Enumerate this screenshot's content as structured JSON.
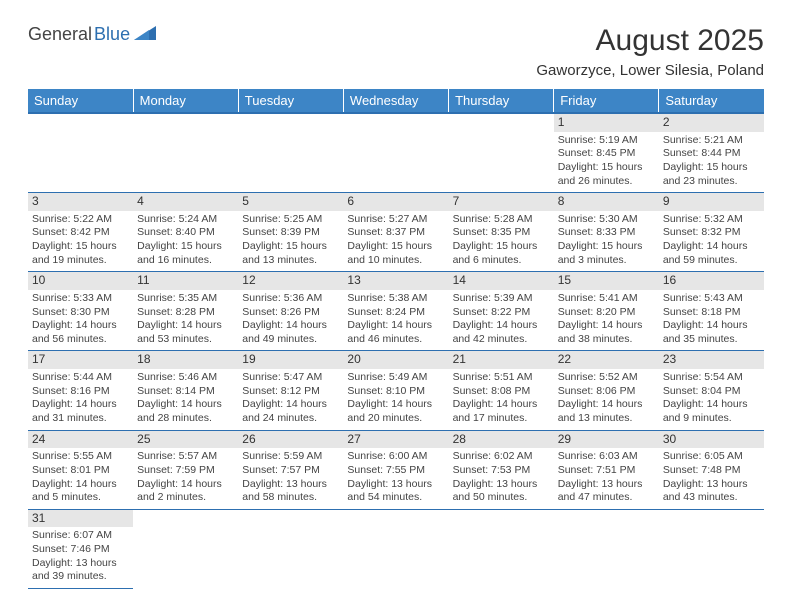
{
  "logo": {
    "text1": "General",
    "text2": "Blue"
  },
  "title": "August 2025",
  "subtitle": "Gaworzyce, Lower Silesia, Poland",
  "colors": {
    "header_bg": "#3d85c6",
    "header_fg": "#ffffff",
    "accent": "#2d6fb0",
    "daynum_bg": "#e6e6e6",
    "text": "#333333"
  },
  "weekdays": [
    "Sunday",
    "Monday",
    "Tuesday",
    "Wednesday",
    "Thursday",
    "Friday",
    "Saturday"
  ],
  "weeks": [
    [
      null,
      null,
      null,
      null,
      null,
      {
        "n": "1",
        "sr": "5:19 AM",
        "ss": "8:45 PM",
        "dl": "15 hours and 26 minutes."
      },
      {
        "n": "2",
        "sr": "5:21 AM",
        "ss": "8:44 PM",
        "dl": "15 hours and 23 minutes."
      }
    ],
    [
      {
        "n": "3",
        "sr": "5:22 AM",
        "ss": "8:42 PM",
        "dl": "15 hours and 19 minutes."
      },
      {
        "n": "4",
        "sr": "5:24 AM",
        "ss": "8:40 PM",
        "dl": "15 hours and 16 minutes."
      },
      {
        "n": "5",
        "sr": "5:25 AM",
        "ss": "8:39 PM",
        "dl": "15 hours and 13 minutes."
      },
      {
        "n": "6",
        "sr": "5:27 AM",
        "ss": "8:37 PM",
        "dl": "15 hours and 10 minutes."
      },
      {
        "n": "7",
        "sr": "5:28 AM",
        "ss": "8:35 PM",
        "dl": "15 hours and 6 minutes."
      },
      {
        "n": "8",
        "sr": "5:30 AM",
        "ss": "8:33 PM",
        "dl": "15 hours and 3 minutes."
      },
      {
        "n": "9",
        "sr": "5:32 AM",
        "ss": "8:32 PM",
        "dl": "14 hours and 59 minutes."
      }
    ],
    [
      {
        "n": "10",
        "sr": "5:33 AM",
        "ss": "8:30 PM",
        "dl": "14 hours and 56 minutes."
      },
      {
        "n": "11",
        "sr": "5:35 AM",
        "ss": "8:28 PM",
        "dl": "14 hours and 53 minutes."
      },
      {
        "n": "12",
        "sr": "5:36 AM",
        "ss": "8:26 PM",
        "dl": "14 hours and 49 minutes."
      },
      {
        "n": "13",
        "sr": "5:38 AM",
        "ss": "8:24 PM",
        "dl": "14 hours and 46 minutes."
      },
      {
        "n": "14",
        "sr": "5:39 AM",
        "ss": "8:22 PM",
        "dl": "14 hours and 42 minutes."
      },
      {
        "n": "15",
        "sr": "5:41 AM",
        "ss": "8:20 PM",
        "dl": "14 hours and 38 minutes."
      },
      {
        "n": "16",
        "sr": "5:43 AM",
        "ss": "8:18 PM",
        "dl": "14 hours and 35 minutes."
      }
    ],
    [
      {
        "n": "17",
        "sr": "5:44 AM",
        "ss": "8:16 PM",
        "dl": "14 hours and 31 minutes."
      },
      {
        "n": "18",
        "sr": "5:46 AM",
        "ss": "8:14 PM",
        "dl": "14 hours and 28 minutes."
      },
      {
        "n": "19",
        "sr": "5:47 AM",
        "ss": "8:12 PM",
        "dl": "14 hours and 24 minutes."
      },
      {
        "n": "20",
        "sr": "5:49 AM",
        "ss": "8:10 PM",
        "dl": "14 hours and 20 minutes."
      },
      {
        "n": "21",
        "sr": "5:51 AM",
        "ss": "8:08 PM",
        "dl": "14 hours and 17 minutes."
      },
      {
        "n": "22",
        "sr": "5:52 AM",
        "ss": "8:06 PM",
        "dl": "14 hours and 13 minutes."
      },
      {
        "n": "23",
        "sr": "5:54 AM",
        "ss": "8:04 PM",
        "dl": "14 hours and 9 minutes."
      }
    ],
    [
      {
        "n": "24",
        "sr": "5:55 AM",
        "ss": "8:01 PM",
        "dl": "14 hours and 5 minutes."
      },
      {
        "n": "25",
        "sr": "5:57 AM",
        "ss": "7:59 PM",
        "dl": "14 hours and 2 minutes."
      },
      {
        "n": "26",
        "sr": "5:59 AM",
        "ss": "7:57 PM",
        "dl": "13 hours and 58 minutes."
      },
      {
        "n": "27",
        "sr": "6:00 AM",
        "ss": "7:55 PM",
        "dl": "13 hours and 54 minutes."
      },
      {
        "n": "28",
        "sr": "6:02 AM",
        "ss": "7:53 PM",
        "dl": "13 hours and 50 minutes."
      },
      {
        "n": "29",
        "sr": "6:03 AM",
        "ss": "7:51 PM",
        "dl": "13 hours and 47 minutes."
      },
      {
        "n": "30",
        "sr": "6:05 AM",
        "ss": "7:48 PM",
        "dl": "13 hours and 43 minutes."
      }
    ],
    [
      {
        "n": "31",
        "sr": "6:07 AM",
        "ss": "7:46 PM",
        "dl": "13 hours and 39 minutes."
      },
      null,
      null,
      null,
      null,
      null,
      null
    ]
  ],
  "labels": {
    "sunrise": "Sunrise:",
    "sunset": "Sunset:",
    "daylight": "Daylight:"
  }
}
